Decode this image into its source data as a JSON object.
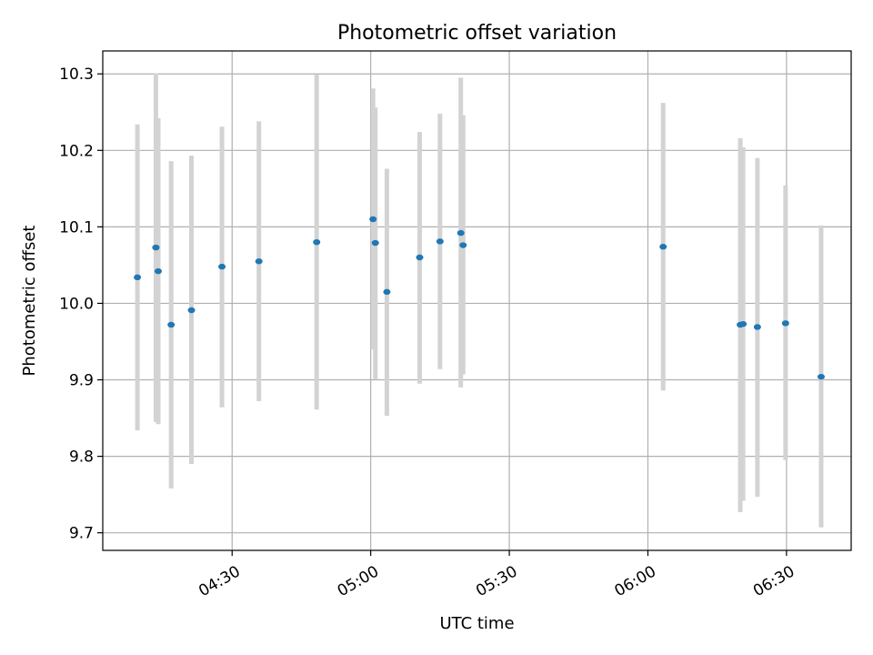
{
  "chart_data": {
    "type": "scatter",
    "title": "Photometric offset variation",
    "xlabel": "UTC time",
    "ylabel": "Photometric offset",
    "x_axis_type": "time",
    "xlim": [
      "04:02",
      "06:44"
    ],
    "ylim": [
      9.677,
      10.33
    ],
    "grid": true,
    "xticks": [
      {
        "time": "04:30",
        "label": "04:30"
      },
      {
        "time": "05:00",
        "label": "05:00"
      },
      {
        "time": "05:30",
        "label": "05:30"
      },
      {
        "time": "06:00",
        "label": "06:00"
      },
      {
        "time": "06:30",
        "label": "06:30"
      }
    ],
    "yticks": [
      {
        "value": 9.7,
        "label": "9.7"
      },
      {
        "value": 9.8,
        "label": "9.8"
      },
      {
        "value": 9.9,
        "label": "9.9"
      },
      {
        "value": 10.0,
        "label": "10.0"
      },
      {
        "value": 10.1,
        "label": "10.1"
      },
      {
        "value": 10.2,
        "label": "10.2"
      },
      {
        "value": 10.3,
        "label": "10.3"
      }
    ],
    "point_color": "#1f77b4",
    "errorbar_color": "#d3d3d3",
    "points": [
      {
        "x": "04:09.5",
        "y": 10.034,
        "ylow": 9.834,
        "yhigh": 10.234
      },
      {
        "x": "04:13.5",
        "y": 10.073,
        "ylow": 9.845,
        "yhigh": 10.301
      },
      {
        "x": "04:14.0",
        "y": 10.042,
        "ylow": 9.842,
        "yhigh": 10.242
      },
      {
        "x": "04:16.8",
        "y": 9.972,
        "ylow": 9.758,
        "yhigh": 10.186
      },
      {
        "x": "04:21.2",
        "y": 9.991,
        "ylow": 9.79,
        "yhigh": 10.193
      },
      {
        "x": "04:27.8",
        "y": 10.048,
        "ylow": 9.864,
        "yhigh": 10.231
      },
      {
        "x": "04:35.8",
        "y": 10.055,
        "ylow": 9.872,
        "yhigh": 10.238
      },
      {
        "x": "04:48.3",
        "y": 10.08,
        "ylow": 9.861,
        "yhigh": 10.299
      },
      {
        "x": "05:00.5",
        "y": 10.11,
        "ylow": 9.94,
        "yhigh": 10.281
      },
      {
        "x": "05:01.0",
        "y": 10.079,
        "ylow": 9.901,
        "yhigh": 10.256
      },
      {
        "x": "05:03.5",
        "y": 10.015,
        "ylow": 9.853,
        "yhigh": 10.176
      },
      {
        "x": "05:10.6",
        "y": 10.06,
        "ylow": 9.895,
        "yhigh": 10.224
      },
      {
        "x": "05:15.0",
        "y": 10.081,
        "ylow": 9.914,
        "yhigh": 10.248
      },
      {
        "x": "05:19.5",
        "y": 10.092,
        "ylow": 9.89,
        "yhigh": 10.295
      },
      {
        "x": "05:20.0",
        "y": 10.076,
        "ylow": 9.907,
        "yhigh": 10.246
      },
      {
        "x": "06:03.3",
        "y": 10.074,
        "ylow": 9.886,
        "yhigh": 10.262
      },
      {
        "x": "06:20.0",
        "y": 9.972,
        "ylow": 9.727,
        "yhigh": 10.216
      },
      {
        "x": "06:20.6",
        "y": 9.973,
        "ylow": 9.742,
        "yhigh": 10.204
      },
      {
        "x": "06:23.7",
        "y": 9.969,
        "ylow": 9.747,
        "yhigh": 10.19
      },
      {
        "x": "06:29.8",
        "y": 9.974,
        "ylow": 9.795,
        "yhigh": 10.154
      },
      {
        "x": "06:37.5",
        "y": 9.904,
        "ylow": 9.707,
        "yhigh": 10.102
      }
    ]
  }
}
